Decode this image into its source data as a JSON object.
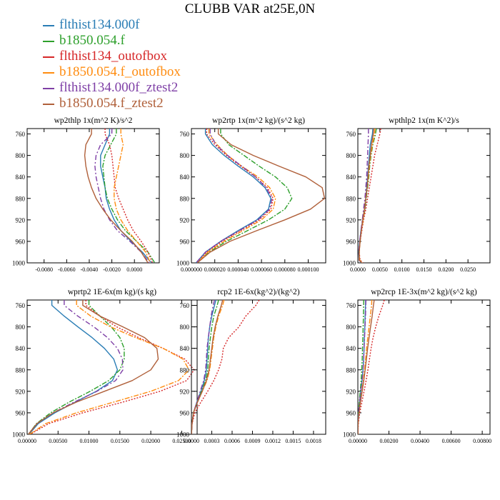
{
  "title": "CLUBB VAR at25E,0N",
  "legend": [
    {
      "label": "flthist134.000f",
      "color": "#2a7db5",
      "dash": ""
    },
    {
      "label": "b1850.054.f",
      "color": "#2ea02c",
      "dash": "7,2,2,2"
    },
    {
      "label": "flthist134_outofbox",
      "color": "#d62728",
      "dash": "2,2"
    },
    {
      "label": "b1850.054.f_outofbox",
      "color": "#ff8c10",
      "dash": "7,2,2,2"
    },
    {
      "label": "flthist134.000f_ztest2",
      "color": "#7e3fa6",
      "dash": "7,3,2,3"
    },
    {
      "label": "b1850.054.f_ztest2",
      "color": "#b0603a",
      "dash": ""
    }
  ],
  "chart_data": [
    {
      "type": "line",
      "title": "wp2thlp  1x(m^2 K)/s^2",
      "ylim": [
        1000,
        750
      ],
      "yticks": [
        760,
        800,
        840,
        880,
        920,
        960,
        1000
      ],
      "xlim": [
        -0.0095,
        0.0022
      ],
      "xticks": [
        -0.008,
        -0.006,
        -0.004,
        -0.002,
        0.0
      ],
      "xticklabels": [
        "-0.0080",
        "-0.0060",
        "-0.0040",
        "-0.0020",
        "0.0000"
      ],
      "y": [
        750,
        760,
        780,
        800,
        820,
        840,
        860,
        880,
        900,
        920,
        940,
        960,
        980,
        1000
      ],
      "series": [
        {
          "values": [
            -0.0022,
            -0.0022,
            -0.0026,
            -0.003,
            -0.003,
            -0.0028,
            -0.0026,
            -0.0025,
            -0.0022,
            -0.0018,
            -0.0012,
            -0.0003,
            0.0007,
            0.0015
          ]
        },
        {
          "values": [
            -0.0016,
            -0.0016,
            -0.0021,
            -0.0026,
            -0.0028,
            -0.0027,
            -0.0026,
            -0.0024,
            -0.002,
            -0.0015,
            -0.0008,
            0.0002,
            0.0012,
            0.0018
          ]
        },
        {
          "values": [
            -0.0026,
            -0.0026,
            -0.0022,
            -0.002,
            -0.0019,
            -0.0018,
            -0.0017,
            -0.0014,
            -0.001,
            -0.0006,
            -0.0001,
            0.0006,
            0.0012,
            0.0016
          ]
        },
        {
          "values": [
            -0.0012,
            -0.0012,
            -0.001,
            -0.0012,
            -0.0014,
            -0.0016,
            -0.0018,
            -0.0018,
            -0.0016,
            -0.0012,
            -0.0006,
            0.0002,
            0.001,
            0.0014
          ]
        },
        {
          "values": [
            -0.002,
            -0.002,
            -0.003,
            -0.0034,
            -0.0035,
            -0.0034,
            -0.0032,
            -0.003,
            -0.0027,
            -0.0022,
            -0.0015,
            -0.0004,
            0.0006,
            0.0013
          ]
        },
        {
          "values": [
            -0.0038,
            -0.0038,
            -0.0043,
            -0.0044,
            -0.0043,
            -0.0041,
            -0.0038,
            -0.0034,
            -0.0028,
            -0.0021,
            -0.0012,
            -0.0002,
            0.0006,
            0.0012
          ]
        }
      ]
    },
    {
      "type": "line",
      "title": "wp2rtp  1x(m^2 kg)/(s^2 kg)",
      "ylim": [
        1000,
        750
      ],
      "yticks": [
        760,
        800,
        840,
        880,
        920,
        960,
        1000
      ],
      "xlim": [
        0.0,
        0.000115
      ],
      "xticks": [
        0.0,
        2e-05,
        4e-05,
        6e-05,
        8e-05,
        0.0001
      ],
      "xticklabels": [
        "0.000000",
        "0.000020",
        "0.000040",
        "0.000060",
        "0.000080",
        "0.000100"
      ],
      "y": [
        750,
        760,
        780,
        800,
        820,
        840,
        860,
        880,
        900,
        920,
        940,
        960,
        980,
        1000
      ],
      "series": [
        {
          "values": [
            1.2e-05,
            1.2e-05,
            1.8e-05,
            2.8e-05,
            4e-05,
            5.3e-05,
            6.3e-05,
            6.8e-05,
            6.6e-05,
            5.6e-05,
            4e-05,
            2.5e-05,
            1.2e-05,
            4e-06
          ]
        },
        {
          "values": [
            2.5e-05,
            2.5e-05,
            3.2e-05,
            4.5e-05,
            5.8e-05,
            7.2e-05,
            8.2e-05,
            8.6e-05,
            8e-05,
            6.6e-05,
            4.8e-05,
            3e-05,
            1.5e-05,
            5e-06
          ]
        },
        {
          "values": [
            1.3e-05,
            1.3e-05,
            2e-05,
            3e-05,
            4.2e-05,
            5.5e-05,
            6.5e-05,
            7e-05,
            6.8e-05,
            5.8e-05,
            4.2e-05,
            2.6e-05,
            1.3e-05,
            5e-06
          ]
        },
        {
          "values": [
            1.5e-05,
            1.5e-05,
            2.2e-05,
            3.1e-05,
            4.3e-05,
            5.7e-05,
            6.7e-05,
            7.2e-05,
            7e-05,
            6e-05,
            4.4e-05,
            2.8e-05,
            1.4e-05,
            5e-06
          ]
        },
        {
          "values": [
            1.6e-05,
            1.6e-05,
            2.1e-05,
            3.1e-05,
            4.3e-05,
            5.5e-05,
            6.4e-05,
            6.9e-05,
            6.7e-05,
            5.7e-05,
            4.1e-05,
            2.5e-05,
            1.2e-05,
            4e-06
          ]
        },
        {
          "values": [
            2.3e-05,
            2.3e-05,
            3.4e-05,
            5.3e-05,
            7.5e-05,
            9.8e-05,
            0.000112,
            0.000114,
            0.000102,
            8e-05,
            5.6e-05,
            3.3e-05,
            1.6e-05,
            5e-06
          ]
        }
      ]
    },
    {
      "type": "line",
      "title": "wpthlp2  1x(m K^2)/s",
      "ylim": [
        1000,
        750
      ],
      "yticks": [
        760,
        800,
        840,
        880,
        920,
        960,
        1000
      ],
      "xlim": [
        0.0,
        0.03
      ],
      "xticks": [
        0.0,
        0.005,
        0.01,
        0.015,
        0.02,
        0.025
      ],
      "xticklabels": [
        "0.0000",
        "0.0050",
        "0.0100",
        "0.0150",
        "0.0200",
        "0.0250"
      ],
      "y": [
        750,
        760,
        780,
        800,
        820,
        840,
        860,
        880,
        900,
        920,
        940,
        960,
        980,
        995,
        1000
      ],
      "series": [
        {
          "values": [
            0.0034,
            0.0033,
            0.0028,
            0.0026,
            0.0024,
            0.0022,
            0.002,
            0.0018,
            0.0015,
            0.0011,
            0.0007,
            0.0004,
            0.0002,
            0.0003,
            0.0008
          ]
        },
        {
          "values": [
            0.0042,
            0.004,
            0.0034,
            0.003,
            0.0027,
            0.0025,
            0.0022,
            0.0019,
            0.0016,
            0.0012,
            0.0008,
            0.0005,
            0.0003,
            0.0004,
            0.001
          ]
        },
        {
          "values": [
            0.0052,
            0.005,
            0.0044,
            0.0038,
            0.0034,
            0.003,
            0.0026,
            0.0022,
            0.0018,
            0.0013,
            0.0009,
            0.0005,
            0.0003,
            0.0005,
            0.0012
          ]
        },
        {
          "values": [
            0.0039,
            0.0038,
            0.0033,
            0.0029,
            0.0026,
            0.0024,
            0.0021,
            0.0018,
            0.0015,
            0.0012,
            0.0008,
            0.0005,
            0.0003,
            0.0004,
            0.001
          ]
        },
        {
          "values": [
            0.0024,
            0.0024,
            0.0023,
            0.0022,
            0.0021,
            0.002,
            0.0018,
            0.0016,
            0.0013,
            0.001,
            0.0007,
            0.0004,
            0.0002,
            0.0003,
            0.0007
          ]
        },
        {
          "values": [
            0.0036,
            0.0035,
            0.0031,
            0.0028,
            0.0025,
            0.0023,
            0.0021,
            0.0018,
            0.0015,
            0.0011,
            0.0008,
            0.0005,
            0.0003,
            0.0003,
            0.0009
          ]
        }
      ]
    },
    {
      "type": "line",
      "title": "wprtp2  1E-6x(m kg)/(s kg)",
      "ylim": [
        1000,
        750
      ],
      "yticks": [
        760,
        800,
        840,
        880,
        920,
        960,
        1000
      ],
      "xlim": [
        0.0,
        0.0275
      ],
      "xticks": [
        0.0,
        0.005,
        0.01,
        0.015,
        0.02,
        0.025
      ],
      "xticklabels": [
        "0.00000",
        "0.00500",
        "0.01000",
        "0.01500",
        "0.02000",
        "0.02500"
      ],
      "y": [
        750,
        760,
        780,
        800,
        820,
        840,
        860,
        880,
        900,
        920,
        940,
        960,
        980,
        1000
      ],
      "series": [
        {
          "values": [
            0.004,
            0.004,
            0.006,
            0.0082,
            0.0105,
            0.0125,
            0.014,
            0.0146,
            0.0138,
            0.0112,
            0.0078,
            0.0045,
            0.0018,
            0.0003
          ]
        },
        {
          "values": [
            0.01,
            0.01,
            0.0118,
            0.0136,
            0.015,
            0.0157,
            0.0157,
            0.015,
            0.0132,
            0.0102,
            0.0068,
            0.0038,
            0.0015,
            0.0002
          ]
        },
        {
          "values": [
            0.0095,
            0.0095,
            0.0118,
            0.0145,
            0.018,
            0.022,
            0.0255,
            0.027,
            0.0258,
            0.0215,
            0.0155,
            0.009,
            0.0035,
            0.0005
          ]
        },
        {
          "values": [
            0.008,
            0.008,
            0.0103,
            0.0135,
            0.0175,
            0.022,
            0.0252,
            0.0262,
            0.0245,
            0.02,
            0.014,
            0.008,
            0.003,
            0.0004
          ]
        },
        {
          "values": [
            0.006,
            0.006,
            0.0082,
            0.0108,
            0.013,
            0.0146,
            0.0154,
            0.0155,
            0.0143,
            0.0113,
            0.0076,
            0.0042,
            0.0016,
            0.0002
          ]
        },
        {
          "values": [
            0.009,
            0.009,
            0.0118,
            0.0155,
            0.019,
            0.021,
            0.0212,
            0.02,
            0.017,
            0.0125,
            0.008,
            0.0042,
            0.0016,
            0.0002
          ]
        }
      ]
    },
    {
      "type": "line",
      "title": "rcp2  1E-6x(kg^2)/(kg^2)",
      "ylim": [
        1000,
        750
      ],
      "yticks": [
        760,
        800,
        840,
        880,
        920,
        960,
        1000
      ],
      "xlim": [
        0.0,
        0.00198
      ],
      "xticks": [
        0.0,
        0.0003,
        0.0006,
        0.0009,
        0.0012,
        0.0015,
        0.0018
      ],
      "xticklabels": [
        "0.0000",
        "0.0003",
        "0.0006",
        "0.0009",
        "0.0012",
        "0.0015",
        "0.0018"
      ],
      "y": [
        750,
        760,
        780,
        800,
        820,
        840,
        860,
        880,
        900,
        920,
        940,
        960,
        980,
        1000
      ],
      "series": [
        {
          "values": [
            0.00036,
            0.00034,
            0.0003,
            0.00027,
            0.00025,
            0.00024,
            0.00023,
            0.00022,
            0.00019,
            0.00014,
            8e-05,
            3e-05,
            1e-05,
            0.0
          ]
        },
        {
          "values": [
            0.0004,
            0.00038,
            0.00033,
            0.0003,
            0.00028,
            0.00026,
            0.00025,
            0.00024,
            0.00021,
            0.00015,
            9e-05,
            3e-05,
            1e-05,
            0.0
          ]
        },
        {
          "values": [
            0.001,
            0.00095,
            0.0008,
            0.0007,
            0.00055,
            0.00047,
            0.00045,
            0.0004,
            0.00033,
            0.00024,
            0.00014,
            5e-05,
            1e-05,
            0.0
          ]
        },
        {
          "values": [
            0.00048,
            0.00046,
            0.0004,
            0.00036,
            0.00033,
            0.00031,
            0.00029,
            0.00027,
            0.00023,
            0.00016,
            9e-05,
            3e-05,
            1e-05,
            0.0
          ]
        },
        {
          "values": [
            0.00034,
            0.00032,
            0.00029,
            0.00027,
            0.00025,
            0.00023,
            0.00022,
            0.00021,
            0.00018,
            0.00013,
            8e-05,
            3e-05,
            1e-05,
            0.0
          ]
        },
        {
          "values": [
            0.00046,
            0.00044,
            0.00039,
            0.00035,
            0.00032,
            0.0003,
            0.00028,
            0.00026,
            0.00022,
            0.00016,
            9e-05,
            3e-05,
            1e-05,
            0.0
          ]
        }
      ]
    },
    {
      "type": "line",
      "title": "wp2rcp  1E-3x(m^2 kg)/(s^2 kg)",
      "ylim": [
        1000,
        750
      ],
      "yticks": [
        760,
        800,
        840,
        880,
        920,
        960,
        1000
      ],
      "xlim": [
        0.0,
        0.0085
      ],
      "xticks": [
        0.0,
        0.002,
        0.004,
        0.006,
        0.008
      ],
      "xticklabels": [
        "0.00000",
        "0.00200",
        "0.00400",
        "0.00600",
        "0.00800"
      ],
      "y": [
        750,
        760,
        780,
        800,
        820,
        840,
        860,
        880,
        900,
        920,
        940,
        960,
        980,
        1000
      ],
      "series": [
        {
          "values": [
            0.0005,
            0.00049,
            0.00047,
            0.00045,
            0.00042,
            0.0004,
            0.00037,
            0.00033,
            0.00027,
            0.00019,
            0.00011,
            4e-05,
            1e-05,
            0.0
          ]
        },
        {
          "values": [
            0.00038,
            0.00037,
            0.00036,
            0.00034,
            0.00032,
            0.0003,
            0.00028,
            0.00025,
            0.00021,
            0.00015,
            9e-05,
            4e-05,
            1e-05,
            0.0
          ]
        },
        {
          "values": [
            0.0017,
            0.0016,
            0.00135,
            0.00115,
            0.00098,
            0.00085,
            0.00075,
            0.00065,
            0.00053,
            0.0004,
            0.00026,
            0.00012,
            3e-05,
            0.0
          ]
        },
        {
          "values": [
            0.0009,
            0.00088,
            0.0008,
            0.00072,
            0.00064,
            0.00056,
            0.0005,
            0.00043,
            0.00035,
            0.00026,
            0.00016,
            7e-05,
            2e-05,
            0.0
          ]
        },
        {
          "values": [
            0.00052,
            0.00051,
            0.00049,
            0.00046,
            0.00043,
            0.0004,
            0.00037,
            0.00033,
            0.00027,
            0.00019,
            0.00011,
            4e-05,
            1e-05,
            0.0
          ]
        },
        {
          "values": [
            0.00105,
            0.001,
            0.00092,
            0.00082,
            0.00072,
            0.00063,
            0.00055,
            0.00047,
            0.00038,
            0.00028,
            0.00017,
            8e-05,
            2e-05,
            0.0
          ]
        }
      ]
    }
  ]
}
